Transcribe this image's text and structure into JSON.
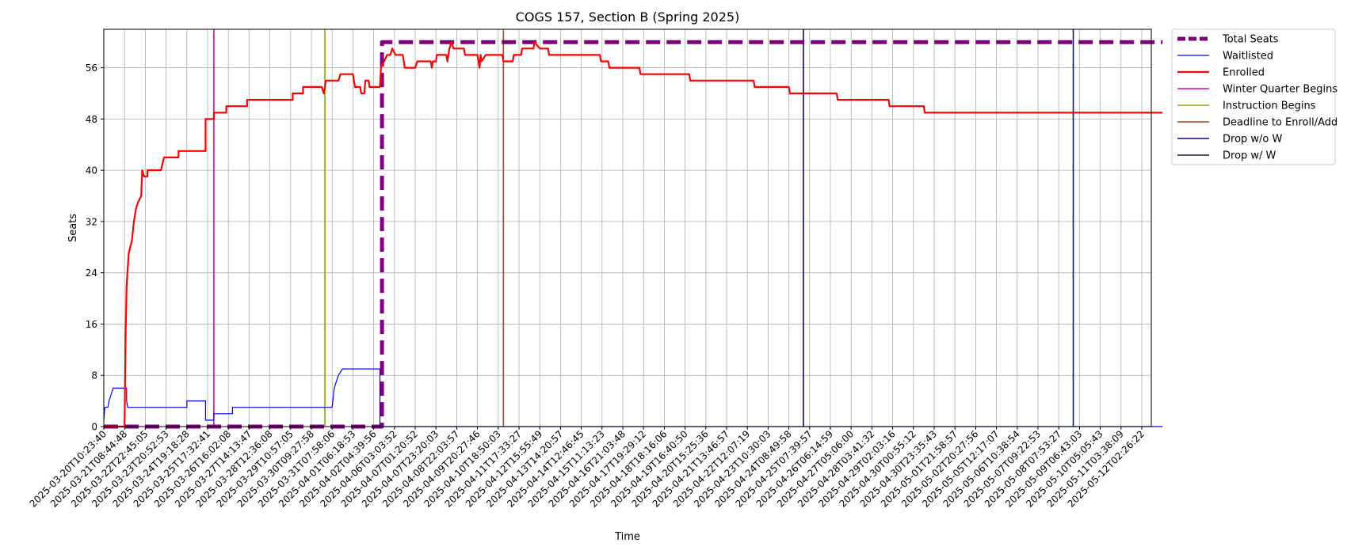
{
  "chart_data": {
    "type": "line",
    "title": "COGS 157, Section B (Spring 2025)",
    "xlabel": "Time",
    "ylabel": "Seats",
    "grid": true,
    "legend_position": "outside-top-right",
    "y_ticks": [
      0,
      8,
      16,
      24,
      32,
      40,
      48,
      56
    ],
    "ylim": [
      0,
      62
    ],
    "xlim": [
      "2025-03-20T10:23:40",
      "2025-05-12T20:00:00"
    ],
    "x_tick_labels": [
      "2025-03-20T10:23:40",
      "2025-03-21T08:44:48",
      "2025-03-22T22:45:05",
      "2025-03-23T20:52:53",
      "2025-03-24T19:18:28",
      "2025-03-25T17:32:41",
      "2025-03-26T16:02:08",
      "2025-03-27T14:13:47",
      "2025-03-28T12:36:08",
      "2025-03-29T10:57:05",
      "2025-03-30T09:27:58",
      "2025-03-31T07:58:06",
      "2025-04-01T06:18:53",
      "2025-04-02T04:39:56",
      "2025-04-06T03:03:52",
      "2025-04-07T01:20:52",
      "2025-04-07T23:20:03",
      "2025-04-08T22:03:57",
      "2025-04-09T20:27:46",
      "2025-04-10T18:50:03",
      "2025-04-11T17:33:27",
      "2025-04-12T15:55:49",
      "2025-04-13T14:20:57",
      "2025-04-14T12:46:45",
      "2025-04-15T11:13:23",
      "2025-04-16T21:03:48",
      "2025-04-17T19:29:12",
      "2025-04-18T18:16:06",
      "2025-04-19T16:40:50",
      "2025-04-20T15:25:36",
      "2025-04-21T13:46:57",
      "2025-04-22T12:07:19",
      "2025-04-23T10:30:03",
      "2025-04-24T08:49:58",
      "2025-04-25T07:39:57",
      "2025-04-26T06:14:59",
      "2025-04-27T05:06:00",
      "2025-04-28T03:41:32",
      "2025-04-29T02:03:16",
      "2025-04-30T00:55:12",
      "2025-04-30T23:35:43",
      "2025-05-01T21:58:57",
      "2025-05-02T20:27:56",
      "2025-05-05T12:17:07",
      "2025-05-06T10:38:54",
      "2025-05-07T09:22:53",
      "2025-05-08T07:53:27",
      "2025-05-09T06:43:03",
      "2025-05-10T05:05:43",
      "2025-05-11T03:38:09",
      "2025-05-12T02:26:22"
    ],
    "series": [
      {
        "name": "Total Seats",
        "color": "#800080",
        "style": "dashed-thick",
        "points": [
          {
            "x": 0.0,
            "y": 0
          },
          {
            "x": 13.4,
            "y": 0
          },
          {
            "x": 13.4,
            "y": 60
          },
          {
            "x": 51.0,
            "y": 60
          }
        ]
      },
      {
        "name": "Waitlisted",
        "color": "#0000ff",
        "style": "solid-thin",
        "points": [
          {
            "x": 0.0,
            "y": 1
          },
          {
            "x": 0.05,
            "y": 3
          },
          {
            "x": 0.2,
            "y": 3
          },
          {
            "x": 0.25,
            "y": 4
          },
          {
            "x": 0.35,
            "y": 5
          },
          {
            "x": 0.45,
            "y": 6
          },
          {
            "x": 1.1,
            "y": 6
          },
          {
            "x": 1.1,
            "y": 4
          },
          {
            "x": 1.15,
            "y": 3
          },
          {
            "x": 4.0,
            "y": 3
          },
          {
            "x": 4.0,
            "y": 4
          },
          {
            "x": 4.9,
            "y": 4
          },
          {
            "x": 4.9,
            "y": 1
          },
          {
            "x": 5.3,
            "y": 1
          },
          {
            "x": 5.3,
            "y": 2
          },
          {
            "x": 6.2,
            "y": 2
          },
          {
            "x": 6.2,
            "y": 3
          },
          {
            "x": 11.0,
            "y": 3
          },
          {
            "x": 11.1,
            "y": 6
          },
          {
            "x": 11.2,
            "y": 7
          },
          {
            "x": 11.3,
            "y": 8
          },
          {
            "x": 11.5,
            "y": 9
          },
          {
            "x": 13.3,
            "y": 9
          },
          {
            "x": 13.3,
            "y": 0
          },
          {
            "x": 51.0,
            "y": 0
          }
        ]
      },
      {
        "name": "Enrolled",
        "color": "#ff0000",
        "style": "solid-thick",
        "points": [
          {
            "x": 0.0,
            "y": 0
          },
          {
            "x": 1.0,
            "y": 0
          },
          {
            "x": 1.05,
            "y": 14
          },
          {
            "x": 1.1,
            "y": 22
          },
          {
            "x": 1.2,
            "y": 27
          },
          {
            "x": 1.35,
            "y": 29
          },
          {
            "x": 1.45,
            "y": 32
          },
          {
            "x": 1.55,
            "y": 34
          },
          {
            "x": 1.65,
            "y": 35
          },
          {
            "x": 1.8,
            "y": 36
          },
          {
            "x": 1.85,
            "y": 40
          },
          {
            "x": 1.95,
            "y": 39
          },
          {
            "x": 2.1,
            "y": 39
          },
          {
            "x": 2.1,
            "y": 40
          },
          {
            "x": 2.75,
            "y": 40
          },
          {
            "x": 2.9,
            "y": 42
          },
          {
            "x": 3.6,
            "y": 42
          },
          {
            "x": 3.6,
            "y": 43
          },
          {
            "x": 4.9,
            "y": 43
          },
          {
            "x": 4.9,
            "y": 48
          },
          {
            "x": 5.3,
            "y": 48
          },
          {
            "x": 5.3,
            "y": 49
          },
          {
            "x": 5.9,
            "y": 49
          },
          {
            "x": 5.9,
            "y": 50
          },
          {
            "x": 6.9,
            "y": 50
          },
          {
            "x": 6.9,
            "y": 51
          },
          {
            "x": 9.1,
            "y": 51
          },
          {
            "x": 9.1,
            "y": 52
          },
          {
            "x": 9.6,
            "y": 52
          },
          {
            "x": 9.6,
            "y": 53
          },
          {
            "x": 10.5,
            "y": 53
          },
          {
            "x": 10.6,
            "y": 52
          },
          {
            "x": 10.7,
            "y": 54
          },
          {
            "x": 11.3,
            "y": 54
          },
          {
            "x": 11.4,
            "y": 55
          },
          {
            "x": 12.0,
            "y": 55
          },
          {
            "x": 12.1,
            "y": 53
          },
          {
            "x": 12.35,
            "y": 53
          },
          {
            "x": 12.4,
            "y": 52
          },
          {
            "x": 12.55,
            "y": 52
          },
          {
            "x": 12.6,
            "y": 54
          },
          {
            "x": 12.75,
            "y": 54
          },
          {
            "x": 12.8,
            "y": 53
          },
          {
            "x": 13.3,
            "y": 53
          },
          {
            "x": 13.35,
            "y": 56
          },
          {
            "x": 13.5,
            "y": 57
          },
          {
            "x": 13.65,
            "y": 58
          },
          {
            "x": 13.8,
            "y": 58
          },
          {
            "x": 13.9,
            "y": 59
          },
          {
            "x": 14.05,
            "y": 58
          },
          {
            "x": 14.4,
            "y": 58
          },
          {
            "x": 14.5,
            "y": 56
          },
          {
            "x": 15.0,
            "y": 56
          },
          {
            "x": 15.1,
            "y": 57
          },
          {
            "x": 15.75,
            "y": 57
          },
          {
            "x": 15.8,
            "y": 56
          },
          {
            "x": 15.85,
            "y": 57
          },
          {
            "x": 16.0,
            "y": 57
          },
          {
            "x": 16.05,
            "y": 58
          },
          {
            "x": 16.5,
            "y": 58
          },
          {
            "x": 16.55,
            "y": 57
          },
          {
            "x": 16.65,
            "y": 59
          },
          {
            "x": 16.75,
            "y": 60
          },
          {
            "x": 16.85,
            "y": 59
          },
          {
            "x": 17.35,
            "y": 59
          },
          {
            "x": 17.4,
            "y": 58
          },
          {
            "x": 18.0,
            "y": 58
          },
          {
            "x": 18.1,
            "y": 56
          },
          {
            "x": 18.15,
            "y": 58
          },
          {
            "x": 18.2,
            "y": 57
          },
          {
            "x": 18.4,
            "y": 58
          },
          {
            "x": 19.2,
            "y": 58
          },
          {
            "x": 19.25,
            "y": 57
          },
          {
            "x": 19.7,
            "y": 57
          },
          {
            "x": 19.75,
            "y": 58
          },
          {
            "x": 20.1,
            "y": 58
          },
          {
            "x": 20.15,
            "y": 59
          },
          {
            "x": 20.7,
            "y": 59
          },
          {
            "x": 20.75,
            "y": 60
          },
          {
            "x": 21.0,
            "y": 59
          },
          {
            "x": 21.4,
            "y": 59
          },
          {
            "x": 21.45,
            "y": 58
          },
          {
            "x": 23.9,
            "y": 58
          },
          {
            "x": 23.95,
            "y": 57
          },
          {
            "x": 24.3,
            "y": 57
          },
          {
            "x": 24.35,
            "y": 56
          },
          {
            "x": 25.8,
            "y": 56
          },
          {
            "x": 25.85,
            "y": 55
          },
          {
            "x": 28.2,
            "y": 55
          },
          {
            "x": 28.25,
            "y": 54
          },
          {
            "x": 31.3,
            "y": 54
          },
          {
            "x": 31.35,
            "y": 53
          },
          {
            "x": 33.0,
            "y": 53
          },
          {
            "x": 33.05,
            "y": 52
          },
          {
            "x": 35.3,
            "y": 52
          },
          {
            "x": 35.35,
            "y": 51
          },
          {
            "x": 37.8,
            "y": 51
          },
          {
            "x": 37.85,
            "y": 50
          },
          {
            "x": 39.5,
            "y": 50
          },
          {
            "x": 39.55,
            "y": 49
          },
          {
            "x": 51.0,
            "y": 49
          }
        ]
      }
    ],
    "markers": [
      {
        "name": "Winter Quarter Begins",
        "color": "#e0009a",
        "x": 5.3
      },
      {
        "name": "Instruction Begins",
        "color": "#7fb000",
        "x": 10.65
      },
      {
        "name": "Deadline to Enroll/Add",
        "color": "#b0451a",
        "x": 19.25
      },
      {
        "name": "Drop w/o W",
        "color": "#1a007a",
        "x": 33.7
      },
      {
        "name": "Drop w/ W",
        "color": "#0a1f4a",
        "x": 46.7
      }
    ]
  }
}
